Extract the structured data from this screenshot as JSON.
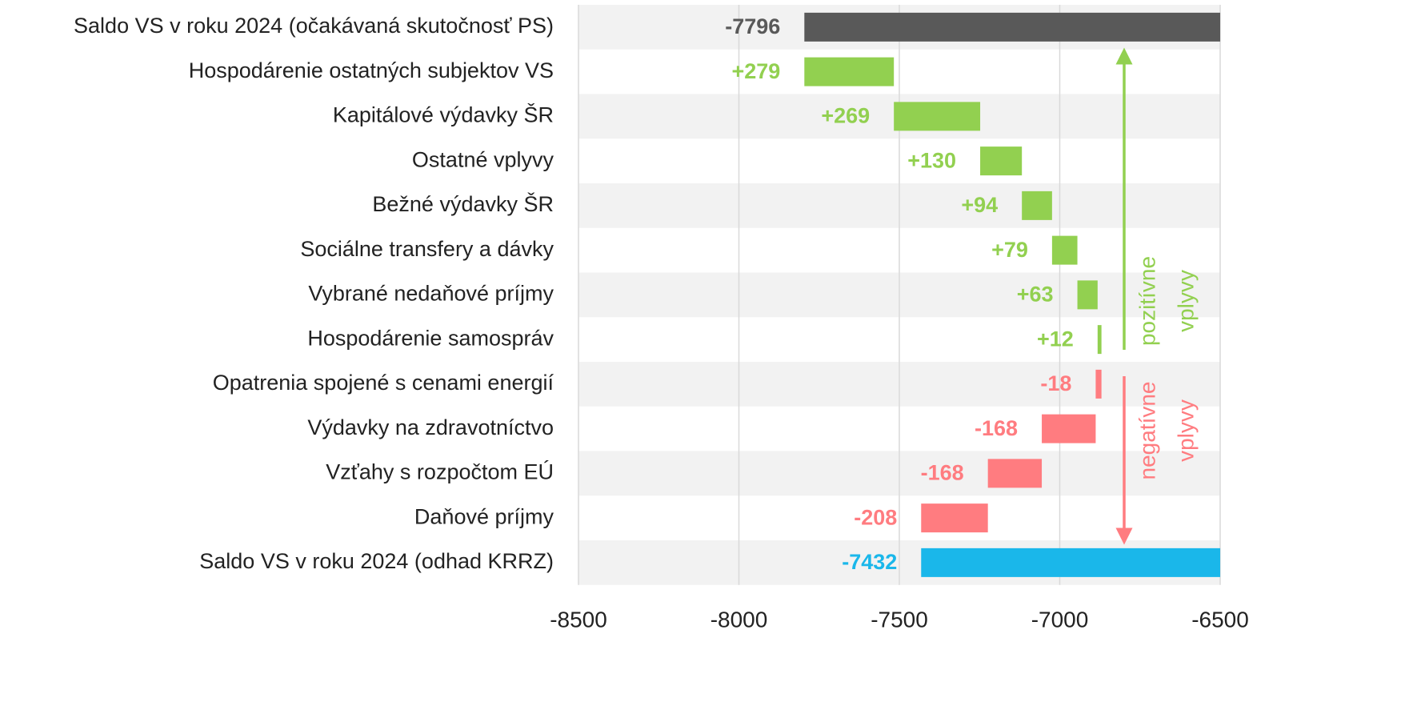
{
  "chart_data": {
    "type": "waterfall",
    "categories": [
      "Saldo VS v roku 2024 (očakávaná skutočnosť PS)",
      "Hospodárenie ostatných subjektov VS",
      "Kapitálové výdavky ŠR",
      "Ostatné vplyvy",
      "Bežné výdavky ŠR",
      "Sociálne transfery a dávky",
      "Vybrané nedaňové príjmy",
      "Hospodárenie samospráv",
      "Opatrenia spojené s cenami energií",
      "Výdavky na zdravotníctvo",
      "Vzťahy s rozpočtom EÚ",
      "Daňové príjmy",
      "Saldo VS v roku 2024 (odhad KRRZ)"
    ],
    "values": [
      -7796,
      279,
      269,
      130,
      94,
      79,
      63,
      12,
      -18,
      -168,
      -168,
      -208,
      -7432
    ],
    "value_labels": [
      "-7796",
      "+279",
      "+269",
      "+130",
      "+94",
      "+79",
      "+63",
      "+12",
      "-18",
      "-168",
      "-168",
      "-208",
      "-7432"
    ],
    "measure": [
      "absolute",
      "relative",
      "relative",
      "relative",
      "relative",
      "relative",
      "relative",
      "relative",
      "relative",
      "relative",
      "relative",
      "relative",
      "absolute"
    ],
    "colors": [
      "#595959",
      "#92d050",
      "#92d050",
      "#92d050",
      "#92d050",
      "#92d050",
      "#92d050",
      "#92d050",
      "#ff7c80",
      "#ff7c80",
      "#ff7c80",
      "#ff7c80",
      "#1ab7ea"
    ],
    "xlim": [
      -8500,
      -6500
    ],
    "xticks": [
      -8500,
      -8000,
      -7500,
      -7000,
      -6500
    ],
    "grid": true,
    "annotations": [
      {
        "lines": [
          "pozitívne",
          "vplyvy"
        ],
        "color": "#92d050",
        "direction": "up"
      },
      {
        "lines": [
          "negatívne",
          "vplyvy"
        ],
        "color": "#ff7c80",
        "direction": "down"
      }
    ]
  }
}
